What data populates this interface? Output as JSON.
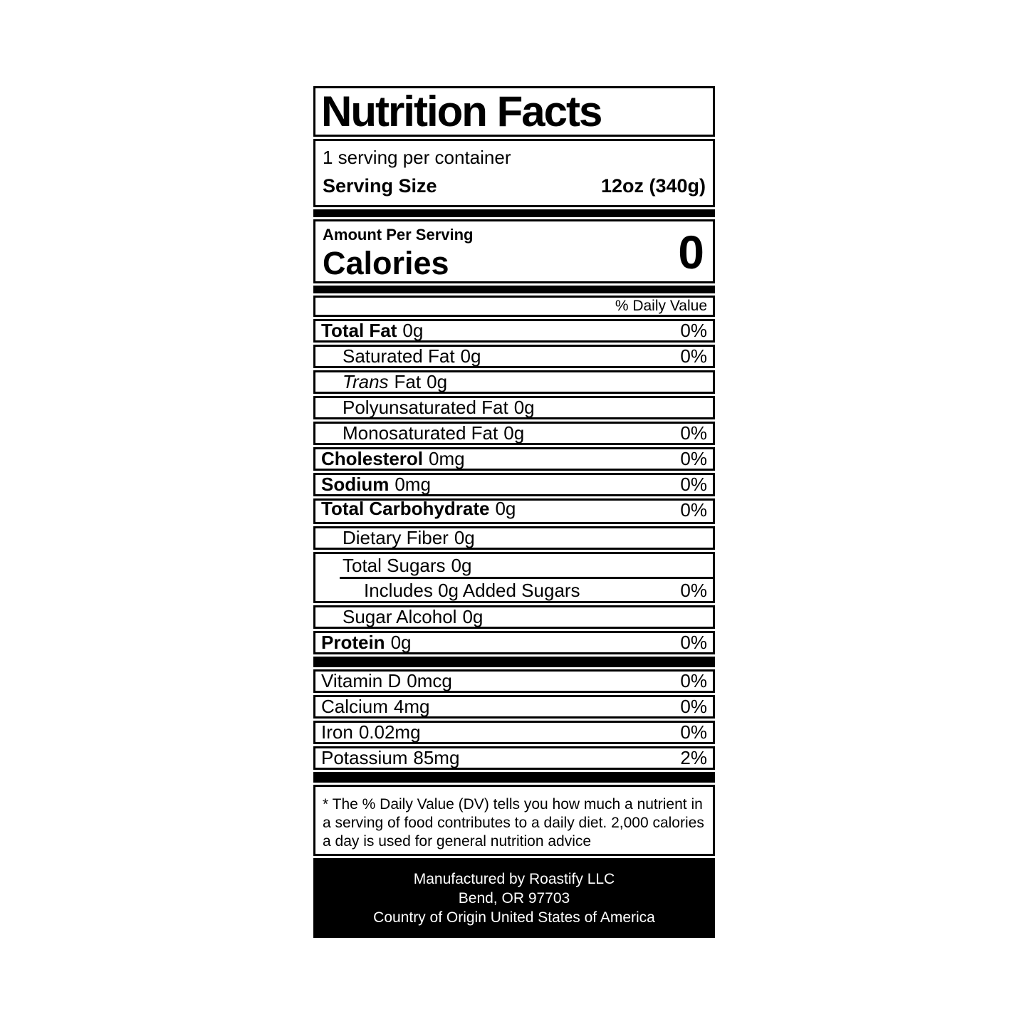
{
  "label": {
    "title": "Nutrition Facts",
    "servings_per_container": "1 serving per container",
    "serving_size_label": "Serving Size",
    "serving_size_value": "12oz (340g)",
    "amount_per_serving": "Amount Per Serving",
    "calories_label": "Calories",
    "calories_value": "0",
    "daily_value_header": "% Daily Value",
    "nutrient_rows": [
      {
        "name": "Total Fat",
        "amount": "0g",
        "pct": "0%"
      },
      {
        "name": "Saturated Fat",
        "amount": "0g",
        "pct": "0%"
      },
      {
        "name_italic": "Trans",
        "name": "Fat",
        "amount": "0g",
        "pct": ""
      },
      {
        "name": "Polyunsaturated Fat",
        "amount": "0g",
        "pct": ""
      },
      {
        "name": "Monosaturated Fat",
        "amount": "0g",
        "pct": "0%"
      },
      {
        "name": "Cholesterol",
        "amount": "0mg",
        "pct": "0%"
      },
      {
        "name": "Sodium",
        "amount": "0mg",
        "pct": "0%"
      },
      {
        "name": "Total Carbohydrate",
        "amount": "0g",
        "pct": "0%"
      },
      {
        "name": "Dietary Fiber",
        "amount": "0g",
        "pct": ""
      },
      {
        "name": "Total Sugars",
        "amount": "0g"
      },
      {
        "name": "Includes 0g Added Sugars",
        "pct": "0%"
      },
      {
        "name": "Sugar Alcohol",
        "amount": "0g",
        "pct": ""
      },
      {
        "name": "Protein",
        "amount": "0g",
        "pct": "0%"
      }
    ],
    "vitamin_rows": [
      {
        "name": "Vitamin D",
        "amount": "0mcg",
        "pct": "0%"
      },
      {
        "name": "Calcium",
        "amount": "4mg",
        "pct": "0%"
      },
      {
        "name": "Iron",
        "amount": "0.02mg",
        "pct": "0%"
      },
      {
        "name": "Potassium",
        "amount": "85mg",
        "pct": "2%"
      }
    ],
    "footnote_lines": [
      "* The % Daily Value (DV) tells you how much a nutrient in",
      "a serving of food contributes to a daily diet. 2,000 calories",
      "a day is used for general nutrition advice"
    ],
    "manufacturer_lines": [
      "Manufactured by Roastify LLC",
      "Bend, OR 97703",
      "Country of Origin United States of America"
    ],
    "colors": {
      "ink": "#000000",
      "paper": "#ffffff"
    }
  }
}
